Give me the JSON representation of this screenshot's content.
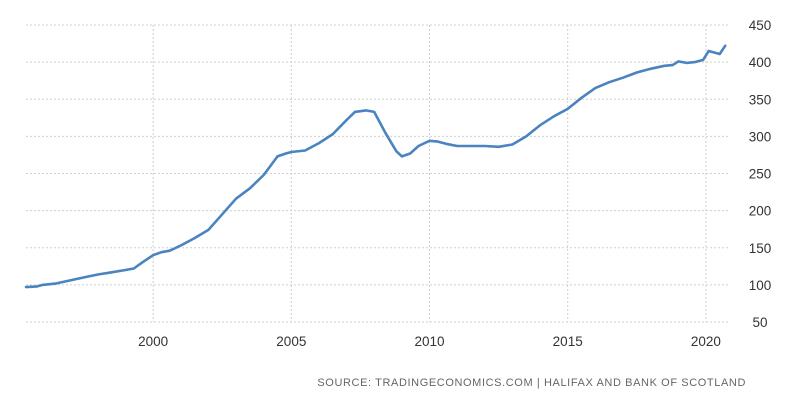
{
  "chart_data": {
    "type": "line",
    "title": "",
    "xlabel": "",
    "ylabel": "",
    "xlim": [
      1995.4,
      2020.8
    ],
    "ylim": [
      50,
      450
    ],
    "grid": true,
    "legend": "none",
    "y_ticks": [
      50,
      100,
      150,
      200,
      250,
      300,
      350,
      400,
      450
    ],
    "y_tick_labels": [
      "50",
      "100",
      "150",
      "200",
      "250",
      "300",
      "350",
      "400",
      "450"
    ],
    "x_ticks": [
      2000,
      2005,
      2010,
      2015,
      2020
    ],
    "x_tick_labels": [
      "2000",
      "2005",
      "2010",
      "2015",
      "2020"
    ],
    "line_color": "#4a84c0",
    "series": [
      {
        "x": [
          1995.4,
          1995.8,
          1996.0,
          1996.5,
          1997.0,
          1997.5,
          1998.0,
          1998.5,
          1999.0,
          1999.3,
          1999.6,
          2000.0,
          2000.3,
          2000.6,
          2001.0,
          2001.5,
          2002.0,
          2002.5,
          2003.0,
          2003.5,
          2004.0,
          2004.5,
          2004.8,
          2005.0,
          2005.5,
          2006.0,
          2006.5,
          2007.0,
          2007.3,
          2007.7,
          2008.0,
          2008.4,
          2008.8,
          2009.0,
          2009.3,
          2009.6,
          2010.0,
          2010.3,
          2010.6,
          2011.0,
          2011.5,
          2012.0,
          2012.5,
          2013.0,
          2013.5,
          2014.0,
          2014.5,
          2015.0,
          2015.5,
          2016.0,
          2016.5,
          2017.0,
          2017.5,
          2018.0,
          2018.5,
          2018.8,
          2019.0,
          2019.3,
          2019.6,
          2019.9,
          2020.1,
          2020.3,
          2020.5,
          2020.7
        ],
        "values": [
          97,
          98,
          100,
          102,
          106,
          110,
          114,
          117,
          120,
          122,
          130,
          140,
          144,
          146,
          153,
          163,
          174,
          195,
          216,
          230,
          248,
          273,
          277,
          279,
          281,
          291,
          303,
          322,
          333,
          335,
          333,
          305,
          280,
          273,
          277,
          287,
          294,
          293,
          290,
          287,
          287,
          287,
          286,
          289,
          300,
          315,
          327,
          337,
          352,
          365,
          373,
          379,
          386,
          391,
          395,
          396,
          401,
          399,
          400,
          403,
          415,
          413,
          411,
          422
        ]
      }
    ],
    "source": "SOURCE: TRADINGECONOMICS.COM | HALIFAX AND BANK OF SCOTLAND"
  }
}
